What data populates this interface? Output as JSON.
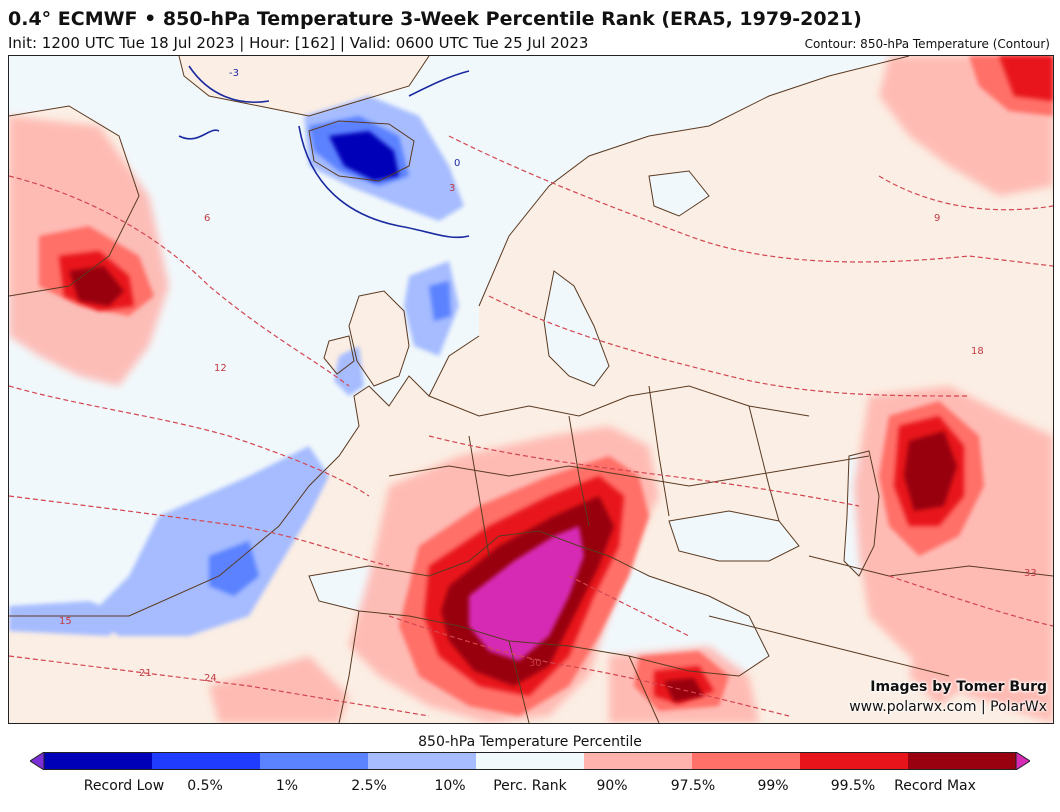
{
  "header": {
    "title": "0.4° ECMWF • 850-hPa Temperature 3-Week Percentile Rank (ERA5, 1979-2021)",
    "subtitle": "Init: 1200 UTC Tue 18 Jul 2023 | Hour: [162] | Valid: 0600 UTC Tue 25 Jul 2023",
    "contour_label": "Contour: 850-hPa Temperature (Contour)"
  },
  "credits": {
    "line1": "Images by Tomer Burg",
    "line2": "www.polarwx.com | PolarWx"
  },
  "colorbar": {
    "title": "850-hPa Temperature Percentile",
    "bins": [
      {
        "label": "Record Low",
        "color": "#7b2fd6"
      },
      {
        "label": "0.5%",
        "color": "#0000b8"
      },
      {
        "label": "1%",
        "color": "#1f3cff"
      },
      {
        "label": "2.5%",
        "color": "#5b82ff"
      },
      {
        "label": "10%",
        "color": "#a6bcff"
      },
      {
        "label": "Perc. Rank",
        "color": "#f2f9fd"
      },
      {
        "label": "90%",
        "color": "#ffb3ac"
      },
      {
        "label": "97.5%",
        "color": "#ff7068"
      },
      {
        "label": "99%",
        "color": "#e8141c"
      },
      {
        "label": "99.5%",
        "color": "#990010"
      },
      {
        "label": "Record Max",
        "color": "#d62bb5"
      }
    ]
  },
  "map": {
    "contour_labels": [
      "-3",
      "0",
      "3",
      "6",
      "9",
      "12",
      "15",
      "18",
      "21",
      "24",
      "30",
      "33"
    ]
  }
}
